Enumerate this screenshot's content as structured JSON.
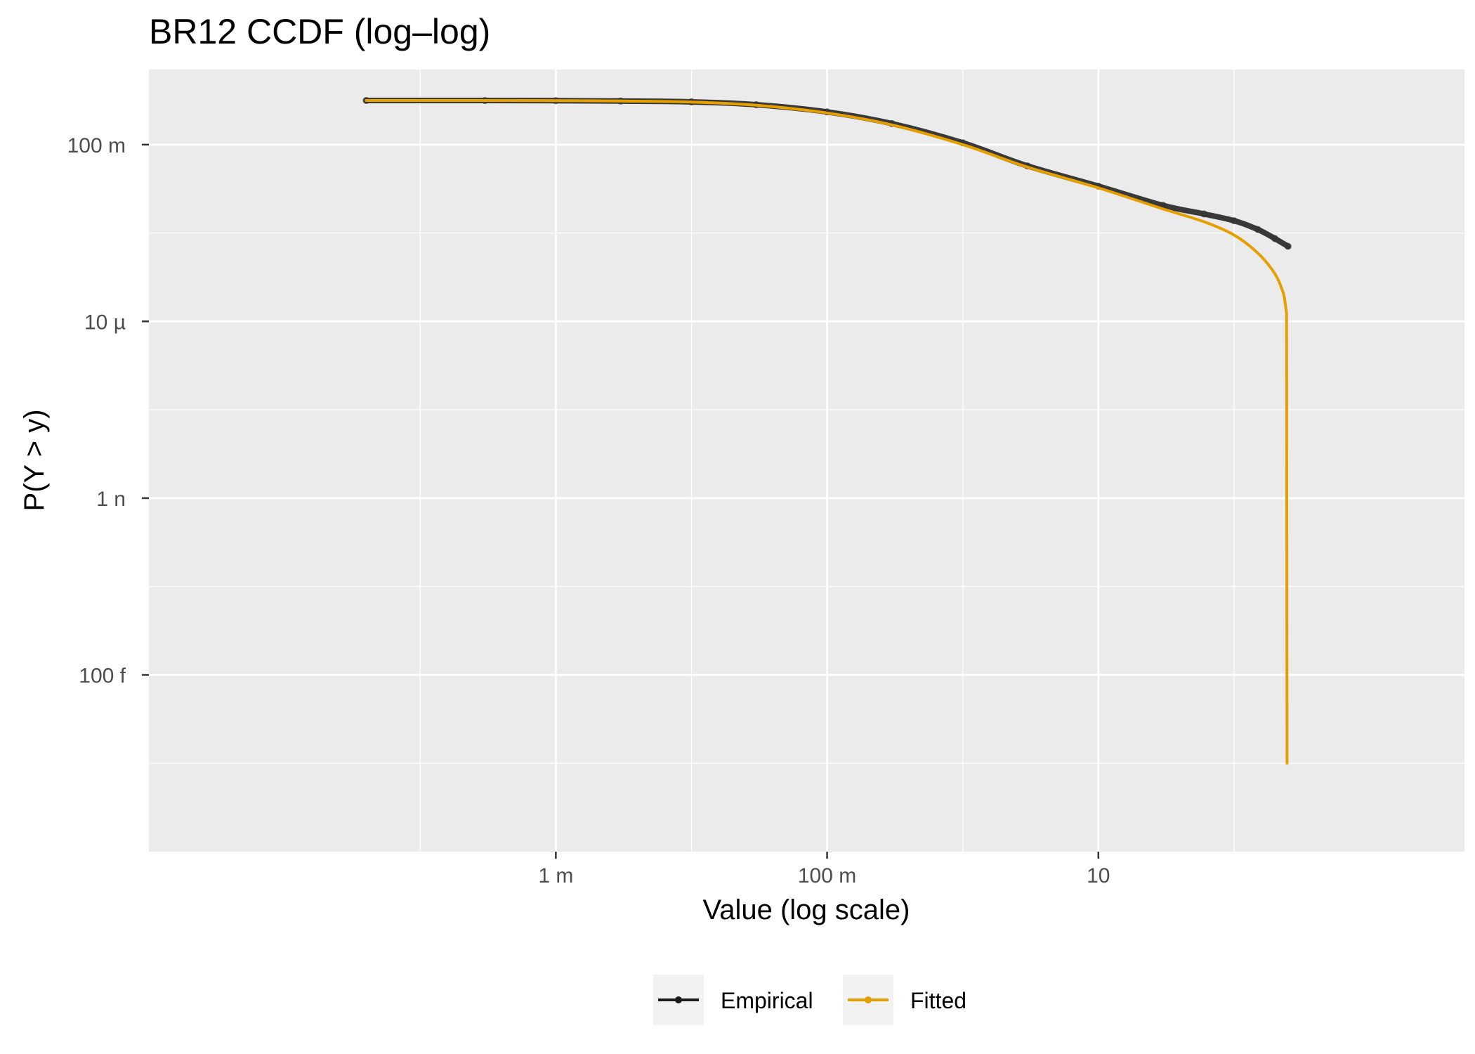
{
  "chart_data": {
    "type": "line",
    "title": "BR12 CCDF (log–log)",
    "xlabel": "Value (log scale)",
    "ylabel": "P(Y > y)",
    "x_scale": "log10",
    "y_scale": "log10",
    "xlim": [
      1e-06,
      5000
    ],
    "ylim": [
      1e-17,
      5
    ],
    "grid": true,
    "legend_position": "bottom",
    "x_ticks": [
      {
        "value": 0.001,
        "label": "1 m"
      },
      {
        "value": 0.1,
        "label": "100 m"
      },
      {
        "value": 10,
        "label": "10"
      }
    ],
    "y_ticks": [
      {
        "value": 0.1,
        "label": "100 m"
      },
      {
        "value": 1e-05,
        "label": "10 µ"
      },
      {
        "value": 1e-09,
        "label": "1 n"
      },
      {
        "value": 1e-13,
        "label": "100 f"
      }
    ],
    "series": [
      {
        "name": "Empirical",
        "color": "#1a1a1a",
        "x": [
          4e-05,
          0.0003,
          0.001,
          0.003,
          0.01,
          0.03,
          0.1,
          0.3,
          1,
          3,
          10,
          30,
          60,
          100,
          150,
          200,
          250
        ],
        "y": [
          0.999,
          0.996,
          0.99,
          0.97,
          0.93,
          0.8,
          0.55,
          0.3,
          0.11,
          0.033,
          0.0115,
          0.0042,
          0.0027,
          0.0019,
          0.0012,
          0.00075,
          0.0005
        ]
      },
      {
        "name": "Fitted",
        "color": "#E69F00",
        "x": [
          4e-05,
          0.0003,
          0.001,
          0.003,
          0.01,
          0.03,
          0.1,
          0.3,
          1,
          3,
          10,
          30,
          60,
          100,
          150,
          200,
          230,
          240,
          244,
          246
        ],
        "y": [
          0.999,
          0.996,
          0.99,
          0.97,
          0.92,
          0.78,
          0.52,
          0.28,
          0.1,
          0.031,
          0.0105,
          0.0035,
          0.0018,
          0.0009,
          0.00035,
          0.00012,
          4.5e-05,
          2.2e-05,
          1.5e-05,
          1e-15
        ]
      }
    ]
  }
}
